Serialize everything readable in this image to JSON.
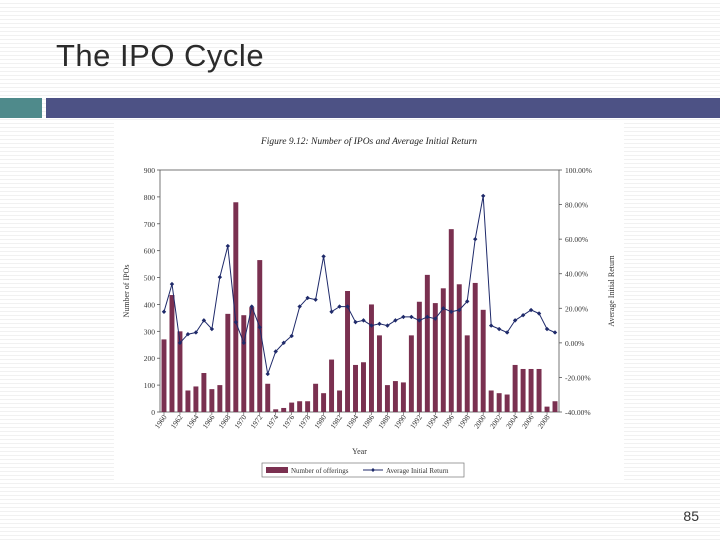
{
  "slide": {
    "title": "The IPO Cycle",
    "page_number": "85"
  },
  "colors": {
    "teal_bar": "#4f8a8b",
    "navy_bar": "#4d5285",
    "bar_fill": "#7a3050",
    "line_color": "#1f2a6a"
  },
  "chart_data": {
    "type": "bar",
    "title": "Figure 9.12: Number of IPOs and Average Initial Return",
    "xlabel": "Year",
    "ylabel": "Number of IPOs",
    "y2label": "Average Initial Return",
    "ylim": [
      0,
      900
    ],
    "y2lim": [
      -40,
      100
    ],
    "y_ticks": [
      "0",
      "100",
      "200",
      "300",
      "400",
      "500",
      "600",
      "700",
      "800",
      "900"
    ],
    "y2_ticks": [
      "-40.00%",
      "-20.00%",
      "0.00%",
      "20.00%",
      "40.00%",
      "60.00%",
      "80.00%",
      "100.00%"
    ],
    "x_tick_labels": [
      "1960",
      "1962",
      "1964",
      "1966",
      "1968",
      "1970",
      "1972",
      "1974",
      "1976",
      "1978",
      "1980",
      "1982",
      "1984",
      "1986",
      "1988",
      "1990",
      "1992",
      "1994",
      "1996",
      "1998",
      "2000",
      "2002",
      "2004",
      "2006",
      "2008"
    ],
    "categories": [
      1960,
      1961,
      1962,
      1963,
      1964,
      1965,
      1966,
      1967,
      1968,
      1969,
      1970,
      1971,
      1972,
      1973,
      1974,
      1975,
      1976,
      1977,
      1978,
      1979,
      1980,
      1981,
      1982,
      1983,
      1984,
      1985,
      1986,
      1987,
      1988,
      1989,
      1990,
      1991,
      1992,
      1993,
      1994,
      1995,
      1996,
      1997,
      1998,
      1999,
      2000,
      2001,
      2002,
      2003,
      2004,
      2005,
      2006,
      2007,
      2008,
      2009
    ],
    "series": [
      {
        "name": "Number of offerings",
        "type": "bar",
        "axis": "left",
        "values": [
          270,
          435,
          300,
          80,
          95,
          145,
          85,
          100,
          365,
          780,
          360,
          390,
          565,
          105,
          10,
          15,
          35,
          40,
          40,
          105,
          70,
          195,
          80,
          450,
          175,
          185,
          400,
          285,
          100,
          115,
          110,
          285,
          410,
          510,
          405,
          460,
          680,
          475,
          285,
          480,
          380,
          80,
          70,
          65,
          175,
          160,
          160,
          160,
          20,
          40
        ]
      },
      {
        "name": "Average Initial Return",
        "type": "line",
        "axis": "right",
        "values": [
          18,
          34,
          0,
          5,
          6,
          13,
          8,
          38,
          56,
          12,
          0,
          21,
          9,
          -18,
          -5,
          0,
          4,
          21,
          26,
          25,
          50,
          18,
          21,
          21,
          12,
          13,
          10,
          11,
          10,
          13,
          15,
          15,
          13,
          15,
          14,
          20,
          18,
          19,
          24,
          60,
          85,
          10,
          8,
          6,
          13,
          16,
          19,
          17,
          8,
          6
        ]
      }
    ]
  }
}
